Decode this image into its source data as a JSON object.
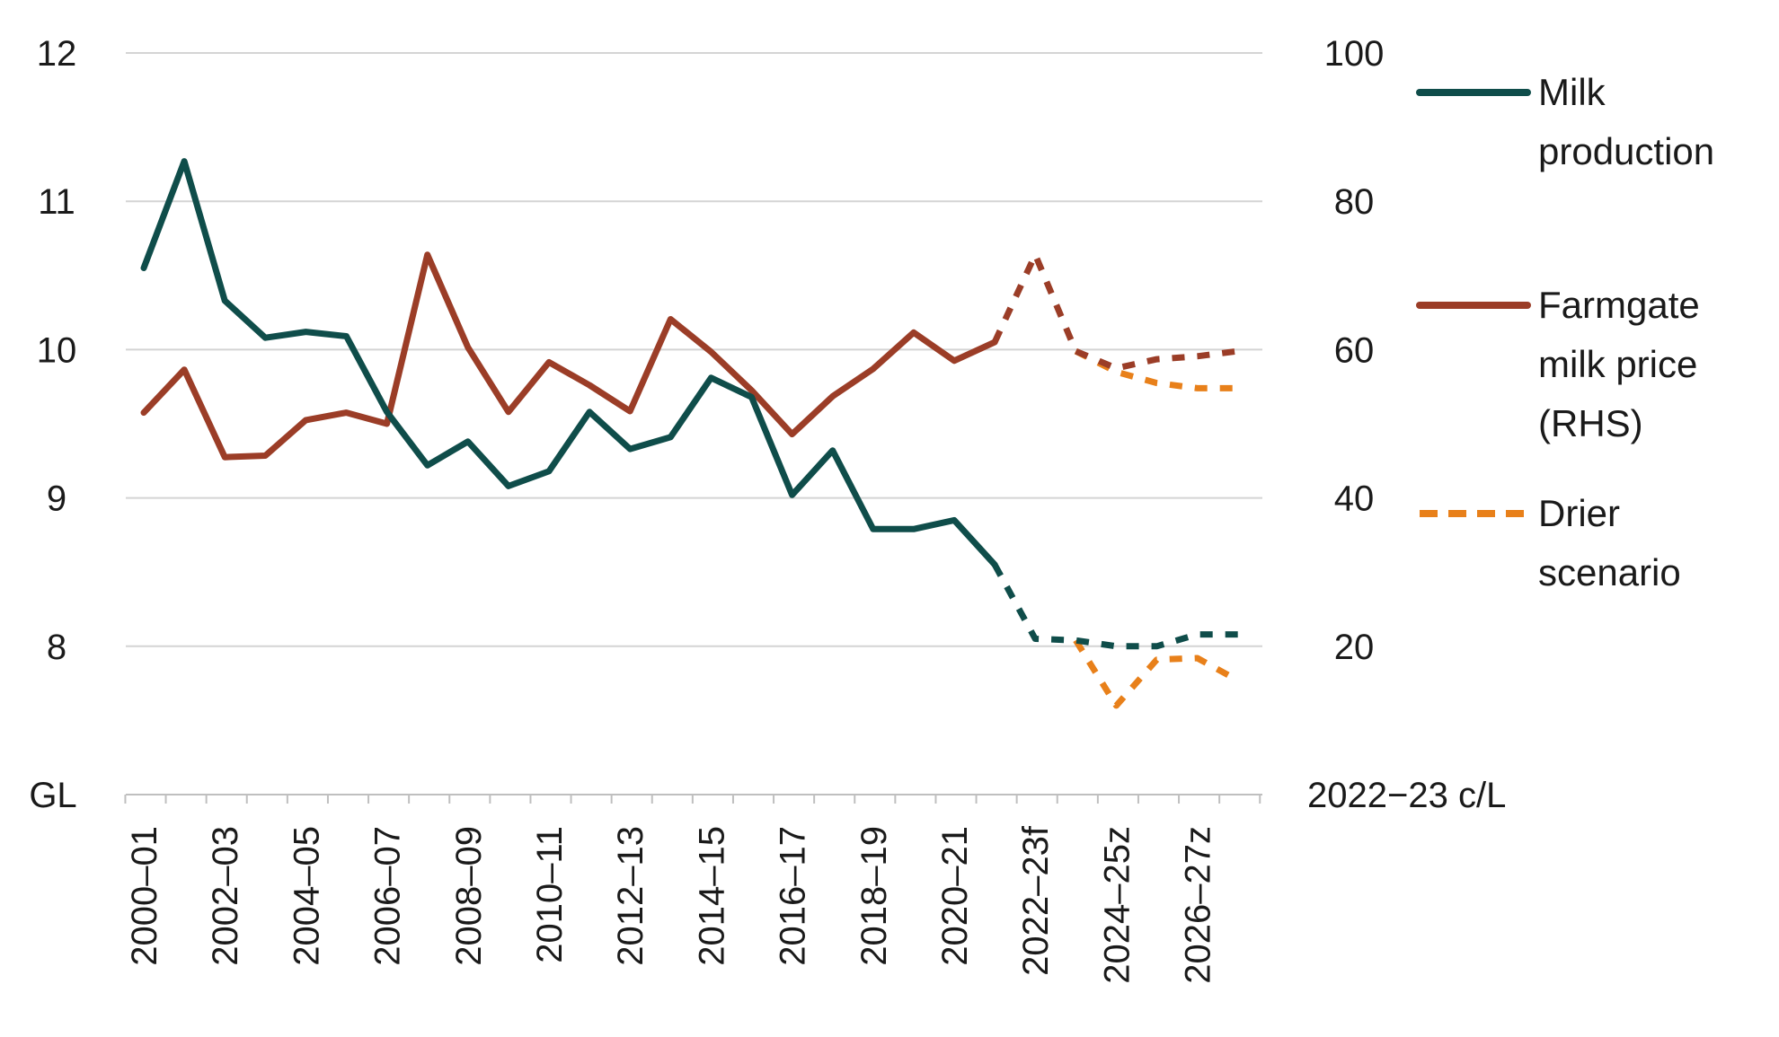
{
  "chart_data": {
    "type": "line",
    "title": "",
    "x": [
      "2000–01",
      "2001–02",
      "2002–03",
      "2003–04",
      "2004–05",
      "2005–06",
      "2006–07",
      "2007–08",
      "2008–09",
      "2009–10",
      "2010–11",
      "2011–12",
      "2012–13",
      "2013–14",
      "2014–15",
      "2015–16",
      "2016–17",
      "2017–18",
      "2018–19",
      "2019–20",
      "2020–21",
      "2021–22",
      "2022–23f",
      "2023–24f",
      "2024–25z",
      "2025–26z",
      "2026–27z",
      "2027–28z"
    ],
    "x_tick_labels": [
      "2000–01",
      "2002–03",
      "2004–05",
      "2006–07",
      "2008–09",
      "2010–11",
      "2012–13",
      "2014–15",
      "2016–17",
      "2018–19",
      "2020–21",
      "2022–23f",
      "2024–25z",
      "2026–27z"
    ],
    "left_axis": {
      "unit_label": "GL",
      "ylim": [
        7,
        12
      ],
      "ticks": [
        "8",
        "9",
        "10",
        "11",
        "12"
      ]
    },
    "right_axis": {
      "unit_label": "2022−23 c/L",
      "ylim": [
        0,
        100
      ],
      "ticks": [
        "20",
        "40",
        "60",
        "80",
        "100"
      ]
    },
    "series": [
      {
        "name": "Milk production",
        "axis": "left",
        "color": "#0f4d4a",
        "values": [
          10.55,
          11.27,
          10.33,
          10.08,
          10.12,
          10.09,
          9.58,
          9.22,
          9.38,
          9.08,
          9.18,
          9.58,
          9.33,
          9.41,
          9.81,
          9.68,
          9.02,
          9.32,
          8.79,
          8.79,
          8.85,
          8.55,
          8.05,
          8.04,
          8.0,
          8.0,
          8.08,
          8.08
        ],
        "solid_until": "2021–22"
      },
      {
        "name": "Farmgate milk price (RHS)",
        "axis": "right",
        "color": "#9b3d27",
        "values": [
          51.5,
          57.3,
          45.5,
          45.7,
          50.5,
          51.5,
          50.0,
          72.8,
          60.3,
          51.6,
          58.3,
          55.2,
          51.7,
          64.1,
          59.7,
          54.5,
          48.6,
          53.7,
          57.4,
          62.3,
          58.5,
          61.0,
          72.8,
          59.8,
          57.5,
          58.7,
          59.1,
          59.8
        ],
        "solid_until": "2021–22"
      },
      {
        "name": "Drier scenario",
        "color": "#e8801a",
        "segments": [
          {
            "axis": "left",
            "start": "2023–24f",
            "values": [
              8.04,
              7.6,
              7.91,
              7.92,
              7.77
            ]
          },
          {
            "axis": "right",
            "start": "2023–24f",
            "values": [
              59.8,
              57.0,
              55.5,
              54.8,
              54.8
            ]
          }
        ]
      }
    ],
    "legend": {
      "placement": "right",
      "entries": [
        {
          "lines": [
            "Milk",
            "production"
          ],
          "color": "#0f4d4a",
          "style": "solid"
        },
        {
          "lines": [
            "Farmgate",
            "milk price",
            "(RHS)"
          ],
          "color": "#9b3d27",
          "style": "solid"
        },
        {
          "lines": [
            "Drier",
            "scenario"
          ],
          "color": "#e8801a",
          "style": "dashed"
        }
      ]
    }
  }
}
